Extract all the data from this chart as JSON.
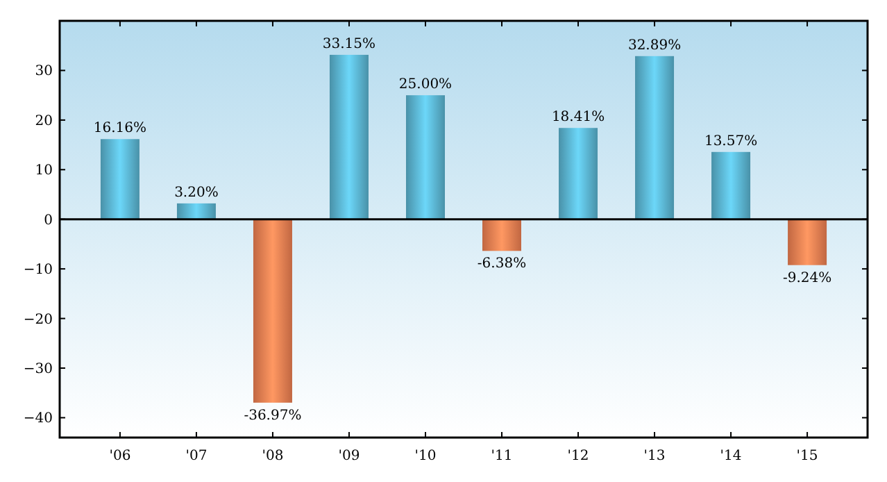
{
  "chart_data": {
    "type": "bar",
    "categories": [
      "'06",
      "'07",
      "'08",
      "'09",
      "'10",
      "'11",
      "'12",
      "'13",
      "'14",
      "'15"
    ],
    "values": [
      16.16,
      3.2,
      -36.97,
      33.15,
      25.0,
      -6.38,
      18.41,
      32.89,
      13.57,
      -9.24
    ],
    "value_labels": [
      "16.16%",
      "3.20%",
      "-36.97%",
      "33.15%",
      "25.00%",
      "-6.38%",
      "18.41%",
      "32.89%",
      "13.57%",
      "-9.24%"
    ],
    "colors": [
      "#5ab4d0",
      "#5ab4d0",
      "#ef7f52",
      "#5ab4d0",
      "#5ab4d0",
      "#ef7f52",
      "#5ab4d0",
      "#5ab4d0",
      "#5ab4d0",
      "#ef7f52"
    ],
    "ylim": [
      -44,
      40
    ],
    "yticks": [
      {
        "value": -40,
        "label": "−40"
      },
      {
        "value": -30,
        "label": "−30"
      },
      {
        "value": -20,
        "label": "−20"
      },
      {
        "value": -10,
        "label": "−10"
      },
      0,
      10,
      20,
      30
    ],
    "ref_lines": [
      {
        "axis": "y",
        "value": 0,
        "color": "#000000"
      }
    ],
    "grid": false
  }
}
